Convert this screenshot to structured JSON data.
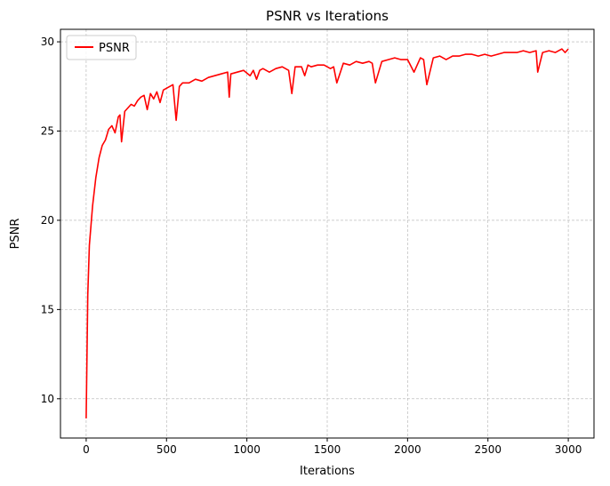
{
  "chart_data": {
    "type": "line",
    "title": "PSNR vs Iterations",
    "xlabel": "Iterations",
    "ylabel": "PSNR",
    "xlim": [
      -160,
      3160
    ],
    "ylim": [
      7.8,
      30.7
    ],
    "xticks": [
      0,
      500,
      1000,
      1500,
      2000,
      2500,
      3000
    ],
    "yticks": [
      10,
      15,
      20,
      25,
      30
    ],
    "grid": true,
    "legend_position": "top-left",
    "series": [
      {
        "name": "PSNR",
        "color": "#ff0000",
        "x": [
          0,
          10,
          20,
          40,
          60,
          80,
          100,
          120,
          140,
          160,
          180,
          200,
          210,
          220,
          240,
          260,
          280,
          300,
          320,
          340,
          360,
          380,
          400,
          420,
          440,
          460,
          480,
          500,
          520,
          540,
          560,
          580,
          600,
          640,
          680,
          720,
          760,
          800,
          840,
          880,
          890,
          900,
          940,
          980,
          1020,
          1040,
          1060,
          1080,
          1100,
          1140,
          1180,
          1220,
          1260,
          1280,
          1300,
          1340,
          1360,
          1380,
          1400,
          1440,
          1480,
          1520,
          1540,
          1560,
          1600,
          1640,
          1680,
          1720,
          1760,
          1780,
          1800,
          1840,
          1880,
          1920,
          1960,
          2000,
          2040,
          2080,
          2100,
          2120,
          2160,
          2200,
          2240,
          2280,
          2320,
          2360,
          2400,
          2440,
          2480,
          2520,
          2560,
          2600,
          2640,
          2680,
          2720,
          2760,
          2800,
          2810,
          2840,
          2880,
          2920,
          2960,
          2980,
          3000
        ],
        "y": [
          8.9,
          15.8,
          18.6,
          20.8,
          22.4,
          23.5,
          24.2,
          24.5,
          25.1,
          25.3,
          24.9,
          25.8,
          25.9,
          24.4,
          26.1,
          26.3,
          26.5,
          26.4,
          26.7,
          26.9,
          27.0,
          26.2,
          27.1,
          26.8,
          27.2,
          26.6,
          27.3,
          27.4,
          27.5,
          27.6,
          25.6,
          27.5,
          27.7,
          27.7,
          27.9,
          27.8,
          28.0,
          28.1,
          28.2,
          28.3,
          26.9,
          28.2,
          28.3,
          28.4,
          28.1,
          28.4,
          27.9,
          28.4,
          28.5,
          28.3,
          28.5,
          28.6,
          28.4,
          27.1,
          28.6,
          28.6,
          28.1,
          28.7,
          28.6,
          28.7,
          28.7,
          28.5,
          28.6,
          27.7,
          28.8,
          28.7,
          28.9,
          28.8,
          28.9,
          28.8,
          27.7,
          28.9,
          29.0,
          29.1,
          29.0,
          29.0,
          28.3,
          29.1,
          29.0,
          27.6,
          29.1,
          29.2,
          29.0,
          29.2,
          29.2,
          29.3,
          29.3,
          29.2,
          29.3,
          29.2,
          29.3,
          29.4,
          29.4,
          29.4,
          29.5,
          29.4,
          29.5,
          28.3,
          29.4,
          29.5,
          29.4,
          29.6,
          29.4,
          29.6
        ]
      }
    ]
  }
}
